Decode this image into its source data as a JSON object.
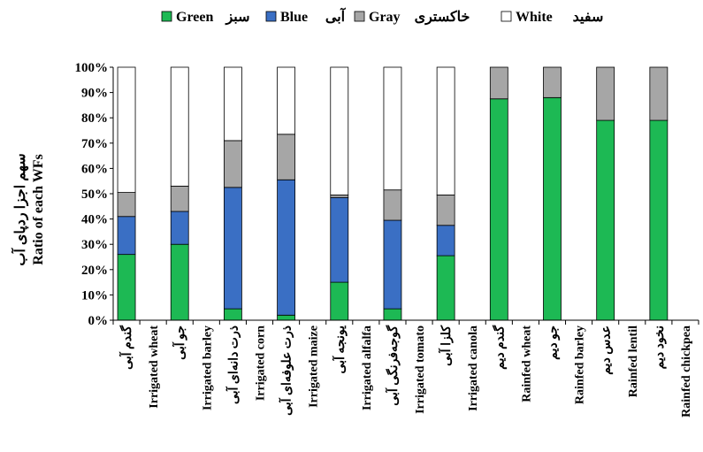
{
  "chart_data": {
    "type": "bar",
    "stacked": true,
    "ylabel_lines": [
      "سهم اجزا ردپای آب",
      "Ratio of  each WFs"
    ],
    "ylim": [
      0,
      100
    ],
    "yticks": [
      "0%",
      "10%",
      "20%",
      "30%",
      "40%",
      "50%",
      "60%",
      "70%",
      "80%",
      "90%",
      "100%"
    ],
    "legend_position": "top",
    "categories": [
      "گندم آبی",
      "Irrigated wheat",
      "جو آبی",
      "Irrigated barley",
      "ذرت دانه‌ای آبی",
      "Irrigated corn",
      "ذرت علوفه‌ای آبی",
      "Irrigated maize",
      "یونجه آبی",
      "Irrigated alfalfa",
      "گوجه‌فرنگی آبی",
      "Irrigated tomato",
      "کلزا آبی",
      "Irrigated canola",
      "گندم دیم",
      "Rainfed wheat",
      "جو دیم",
      "Rainfed barley",
      "عدس دیم",
      "Rainfed lentil",
      "نخود دیم",
      "Rainfed chickpea"
    ],
    "series": [
      {
        "name": "Green",
        "name_fa": "سبز",
        "color": "#1db954",
        "values": [
          26,
          0,
          30,
          0,
          4.5,
          0,
          2,
          0,
          15,
          0,
          4.5,
          0,
          25.5,
          0,
          87.5,
          0,
          88,
          0,
          79,
          0,
          79,
          0
        ]
      },
      {
        "name": "Blue",
        "name_fa": "آبی",
        "color": "#3a6fc4",
        "values": [
          15,
          0,
          13,
          0,
          48,
          0,
          53.5,
          0,
          33.5,
          0,
          35,
          0,
          12,
          0,
          0,
          0,
          0,
          0,
          0,
          0,
          0,
          0
        ]
      },
      {
        "name": "Gray",
        "name_fa": "خاکستری",
        "color": "#a6a6a6",
        "values": [
          9.5,
          0,
          10,
          0,
          18.5,
          0,
          18,
          0,
          1,
          0,
          12,
          0,
          12,
          0,
          12.5,
          0,
          12,
          0,
          21,
          0,
          21,
          0
        ]
      },
      {
        "name": "White",
        "name_fa": "سفید",
        "color": "#ffffff",
        "values": [
          49.5,
          0,
          47,
          0,
          29,
          0,
          26.5,
          0,
          50.5,
          0,
          48.5,
          0,
          50.5,
          0,
          0,
          0,
          0,
          0,
          0,
          0,
          0,
          0
        ]
      }
    ]
  }
}
